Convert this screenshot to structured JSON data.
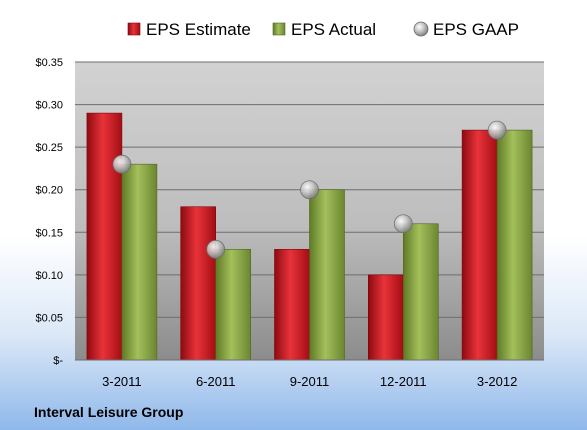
{
  "chart_data": {
    "type": "bar",
    "categories": [
      "3-2011",
      "6-2011",
      "9-2011",
      "12-2011",
      "3-2012"
    ],
    "series": [
      {
        "name": "EPS Estimate",
        "kind": "bar",
        "color": "#c8101c",
        "values": [
          0.29,
          0.18,
          0.13,
          0.1,
          0.27
        ]
      },
      {
        "name": "EPS Actual",
        "kind": "bar",
        "color": "#7e9a3a",
        "values": [
          0.23,
          0.13,
          0.2,
          0.16,
          0.27
        ]
      },
      {
        "name": "EPS GAAP",
        "kind": "marker",
        "color": "#b8b8b8",
        "values": [
          0.23,
          0.13,
          0.2,
          0.16,
          0.27
        ]
      }
    ],
    "yticks": [
      {
        "value": 0,
        "label": "$-"
      },
      {
        "value": 0.05,
        "label": "$0.05"
      },
      {
        "value": 0.1,
        "label": "$0.10"
      },
      {
        "value": 0.15,
        "label": "$0.15"
      },
      {
        "value": 0.2,
        "label": "$0.20"
      },
      {
        "value": 0.25,
        "label": "$0.25"
      },
      {
        "value": 0.3,
        "label": "$0.30"
      },
      {
        "value": 0.35,
        "label": "$0.35"
      }
    ],
    "ylim": [
      0,
      0.35
    ],
    "grid": true,
    "legend_position": "top",
    "footer": "Interval Leisure Group"
  }
}
